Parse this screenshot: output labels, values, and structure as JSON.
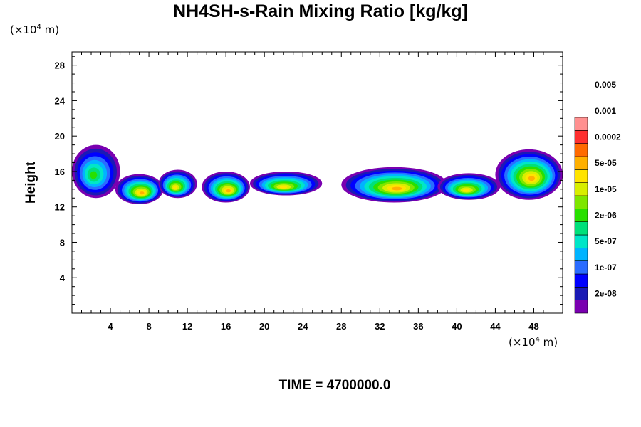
{
  "title": "NH4SH-s-Rain Mixing Ratio [kg/kg]",
  "y_unit": {
    "pre": "(×10",
    "exp": "4",
    "post": " m)"
  },
  "x_unit": {
    "pre": "(×10",
    "exp": "4",
    "post": " m)"
  },
  "time_label": "TIME = 4700000.0",
  "chart_data": {
    "type": "heatmap",
    "title": "NH4SH-s-Rain Mixing Ratio [kg/kg]",
    "ylabel": "Height",
    "xlabel": "",
    "xlim": [
      0,
      51
    ],
    "ylim": [
      0,
      29.5
    ],
    "x_ticks": [
      4,
      8,
      12,
      16,
      20,
      24,
      28,
      32,
      36,
      40,
      44,
      48
    ],
    "y_ticks": [
      4,
      8,
      12,
      16,
      20,
      24,
      28
    ],
    "colorbar": {
      "levels": [
        "2e-08",
        "1e-07",
        "5e-07",
        "2e-06",
        "1e-05",
        "5e-05",
        "0.0002",
        "0.001",
        "0.005"
      ],
      "colors": [
        "#7a00b0",
        "#1a1ab5",
        "#0000ff",
        "#2a6cff",
        "#00b4ff",
        "#00e6c8",
        "#00e07a",
        "#28e000",
        "#7ee600",
        "#d8ee00",
        "#ffe400",
        "#ffb000",
        "#ff6a00",
        "#ff3030",
        "#ff9090"
      ]
    },
    "features": [
      {
        "x": [
          0,
          5
        ],
        "y": [
          13,
          19
        ],
        "peak_level": "2e-06"
      },
      {
        "x": [
          4.5,
          9.5
        ],
        "y": [
          12.3,
          15.7
        ],
        "peak_level": "0.0002"
      },
      {
        "x": [
          9,
          13
        ],
        "y": [
          13,
          16.2
        ],
        "peak_level": "5e-05"
      },
      {
        "x": [
          13.5,
          18.5
        ],
        "y": [
          12.5,
          16
        ],
        "peak_level": "0.0002"
      },
      {
        "x": [
          18.5,
          26
        ],
        "y": [
          13.3,
          16
        ],
        "peak_level": "5e-05"
      },
      {
        "x": [
          28,
          39
        ],
        "y": [
          12.5,
          16.5
        ],
        "peak_level": "0.0002"
      },
      {
        "x": [
          38,
          44.5
        ],
        "y": [
          12.8,
          15.8
        ],
        "peak_level": "5e-05"
      },
      {
        "x": [
          44,
          51
        ],
        "y": [
          12.8,
          18.5
        ],
        "peak_level": "0.0002"
      }
    ]
  }
}
